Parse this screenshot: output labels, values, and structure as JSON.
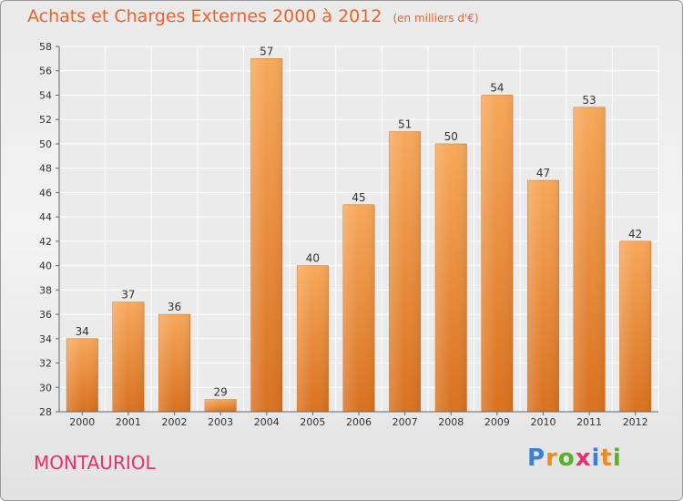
{
  "header": {
    "title": "Achats et Charges Externes 2000 à 2012",
    "subtitle": "(en milliers d'€)"
  },
  "commune": "MONTAURIOL",
  "brand": {
    "letters": [
      "P",
      "r",
      "o",
      "x",
      "i",
      "t",
      "i"
    ],
    "colors": [
      "#3a7fd8",
      "#f08a1c",
      "#5ab02a",
      "#e8306a",
      "#3a7fd8",
      "#f08a1c",
      "#5ab02a"
    ]
  },
  "chart_data": {
    "type": "bar",
    "title": "Achats et Charges Externes 2000 à 2012",
    "subtitle": "(en milliers d'€)",
    "categories": [
      "2000",
      "2001",
      "2002",
      "2003",
      "2004",
      "2005",
      "2006",
      "2007",
      "2008",
      "2009",
      "2010",
      "2011",
      "2012"
    ],
    "values": [
      34,
      37,
      36,
      29,
      57,
      40,
      45,
      51,
      50,
      54,
      47,
      53,
      42
    ],
    "value_labels": [
      "34",
      "37",
      "36",
      "29",
      "57",
      "40",
      "45",
      "51",
      "50",
      "54",
      "47",
      "53",
      "42"
    ],
    "ylim": [
      28,
      58
    ],
    "yticks": [
      28,
      30,
      32,
      34,
      36,
      38,
      40,
      42,
      44,
      46,
      48,
      50,
      52,
      54,
      56,
      58
    ],
    "ytick_labels": [
      "28",
      "30",
      "32",
      "34",
      "36",
      "38",
      "40",
      "42",
      "44",
      "46",
      "48",
      "50",
      "52",
      "54",
      "56",
      "58"
    ],
    "grid": true,
    "bar_color": "#f29b4c",
    "xlabel": "",
    "ylabel": ""
  }
}
